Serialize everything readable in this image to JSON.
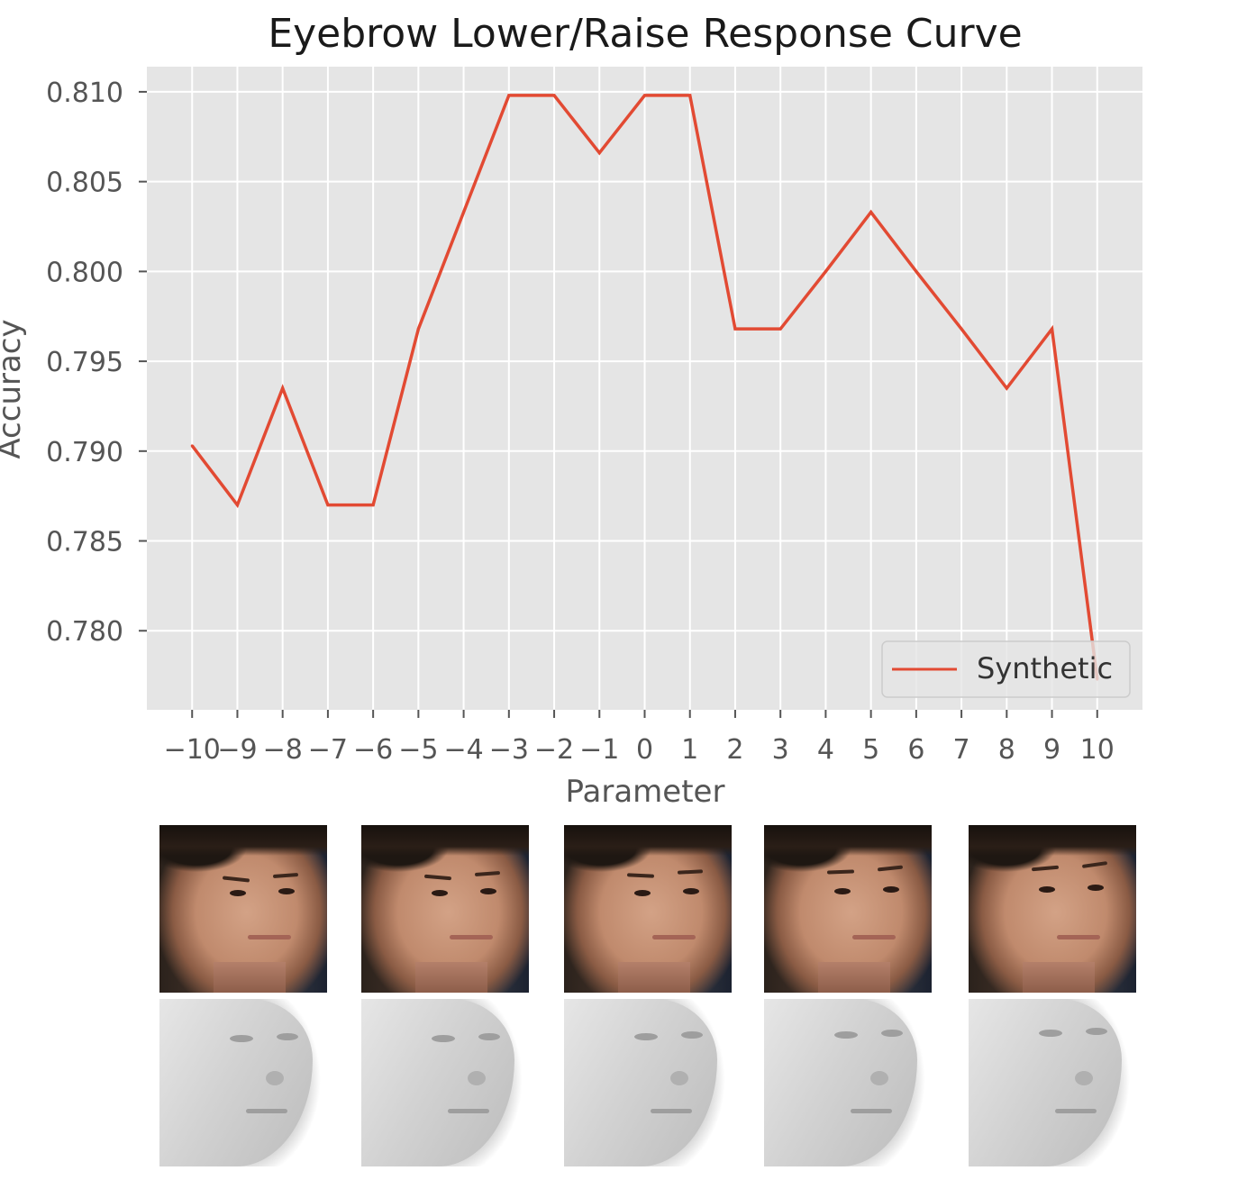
{
  "chart_data": {
    "type": "line",
    "title": "Eyebrow Lower/Raise Response Curve",
    "xlabel": "Parameter",
    "ylabel": "Accuracy",
    "x": [
      -10,
      -9,
      -8,
      -7,
      -6,
      -5,
      -4,
      -3,
      -2,
      -1,
      0,
      1,
      2,
      3,
      4,
      5,
      6,
      7,
      8,
      9,
      10
    ],
    "series": [
      {
        "name": "Synthetic",
        "color": "#E24A33",
        "values": [
          0.7903,
          0.787,
          0.7935,
          0.787,
          0.787,
          0.7968,
          0.8033,
          0.8098,
          0.8098,
          0.8066,
          0.8098,
          0.8098,
          0.7968,
          0.7968,
          0.8,
          0.8033,
          0.8,
          0.7968,
          0.7935,
          0.7968,
          0.7773
        ]
      }
    ],
    "xticks": [
      "−10",
      "−9",
      "−8",
      "−7",
      "−6",
      "−5",
      "−4",
      "−3",
      "−2",
      "−1",
      "0",
      "1",
      "2",
      "3",
      "4",
      "5",
      "6",
      "7",
      "8",
      "9",
      "10"
    ],
    "yticks": [
      0.78,
      0.785,
      0.79,
      0.795,
      0.8,
      0.805,
      0.81
    ],
    "ytick_labels": [
      "0.780",
      "0.785",
      "0.790",
      "0.795",
      "0.800",
      "0.805",
      "0.810"
    ],
    "xlim": [
      -11,
      11
    ],
    "ylim": [
      0.7756,
      0.8114
    ],
    "grid": true,
    "background": "#E5E5E5",
    "legend_position": "lower-right"
  },
  "thumbnails": {
    "photo_row_count": 5,
    "mesh_row_count": 5
  }
}
